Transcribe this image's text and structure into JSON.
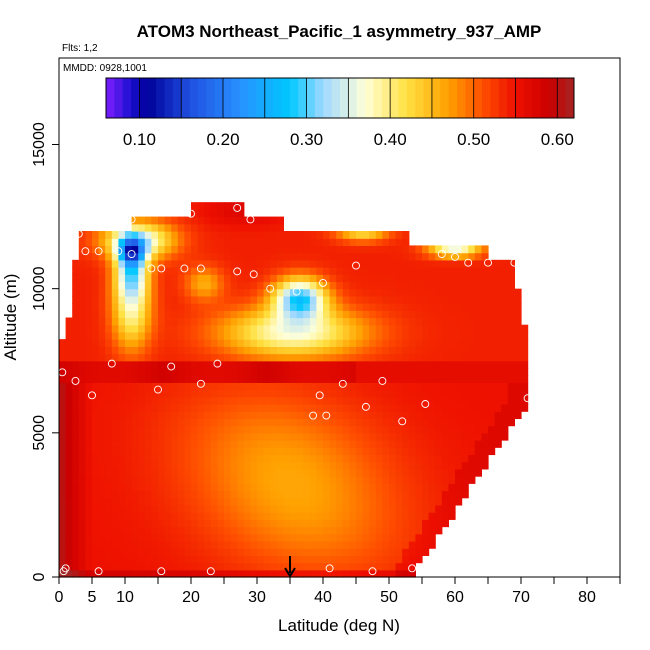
{
  "chart_data": {
    "type": "heatmap",
    "title": "ATOM3 Northeast_Pacific_1 asymmetry_937_AMP",
    "flights_label": "Flts: 1,2",
    "dates_label": "MMDD: 0928,1001",
    "xlabel": "Latitude (deg N)",
    "ylabel": "Altitude (m)",
    "xlim": [
      0,
      85
    ],
    "ylim": [
      0,
      18000
    ],
    "x_ticks": [
      0,
      5,
      10,
      20,
      30,
      40,
      50,
      60,
      70,
      80
    ],
    "y_ticks": [
      0,
      5000,
      10000,
      15000
    ],
    "colorbar": {
      "range": [
        0.06,
        0.62
      ],
      "tick_values": [
        0.1,
        0.2,
        0.3,
        0.4,
        0.5,
        0.6
      ],
      "tick_labels": [
        "0.10",
        "0.20",
        "0.30",
        "0.40",
        "0.50",
        "0.60"
      ],
      "stops": [
        {
          "v": 0.06,
          "c": "#7f1fff"
        },
        {
          "v": 0.09,
          "c": "#1a0fd0"
        },
        {
          "v": 0.11,
          "c": "#000099"
        },
        {
          "v": 0.16,
          "c": "#1f4fe0"
        },
        {
          "v": 0.22,
          "c": "#2890ff"
        },
        {
          "v": 0.28,
          "c": "#00c8ff"
        },
        {
          "v": 0.32,
          "c": "#a0d8ff"
        },
        {
          "v": 0.37,
          "c": "#ffffd8"
        },
        {
          "v": 0.42,
          "c": "#ffe040"
        },
        {
          "v": 0.47,
          "c": "#ffa000"
        },
        {
          "v": 0.51,
          "c": "#ff5000"
        },
        {
          "v": 0.55,
          "c": "#ee1000"
        },
        {
          "v": 0.59,
          "c": "#cc0000"
        },
        {
          "v": 0.62,
          "c": "#a52525"
        }
      ]
    },
    "flight_track_marker": {
      "latitude": 35,
      "symbol": "arrow"
    },
    "profile_points": [
      [
        0.5,
        7100
      ],
      [
        0.7,
        200
      ],
      [
        1,
        300
      ],
      [
        3,
        11900
      ],
      [
        2.5,
        6800
      ],
      [
        4,
        11300
      ],
      [
        5,
        6300
      ],
      [
        6,
        11300
      ],
      [
        6,
        200
      ],
      [
        8,
        7400
      ],
      [
        9,
        11300
      ],
      [
        11,
        12400
      ],
      [
        11,
        11200
      ],
      [
        14,
        10700
      ],
      [
        15,
        6500
      ],
      [
        15.5,
        10700
      ],
      [
        15.5,
        200
      ],
      [
        17,
        7300
      ],
      [
        19,
        10700
      ],
      [
        20,
        12600
      ],
      [
        21.5,
        10700
      ],
      [
        21.5,
        6700
      ],
      [
        23,
        200
      ],
      [
        24,
        7400
      ],
      [
        27,
        12800
      ],
      [
        27,
        10600
      ],
      [
        29,
        12400
      ],
      [
        29.5,
        10500
      ],
      [
        32,
        10000
      ],
      [
        36,
        9900
      ],
      [
        38.5,
        5600
      ],
      [
        39.5,
        6300
      ],
      [
        40,
        10200
      ],
      [
        40.5,
        5600
      ],
      [
        41,
        300
      ],
      [
        43,
        6700
      ],
      [
        45,
        10800
      ],
      [
        46.5,
        5900
      ],
      [
        47.5,
        200
      ],
      [
        49,
        6800
      ],
      [
        52,
        5400
      ],
      [
        53.5,
        300
      ],
      [
        55.5,
        6000
      ],
      [
        58,
        11200
      ],
      [
        60,
        11100
      ],
      [
        62,
        10900
      ],
      [
        65,
        10900
      ],
      [
        69,
        10900
      ],
      [
        71,
        6200
      ]
    ]
  }
}
